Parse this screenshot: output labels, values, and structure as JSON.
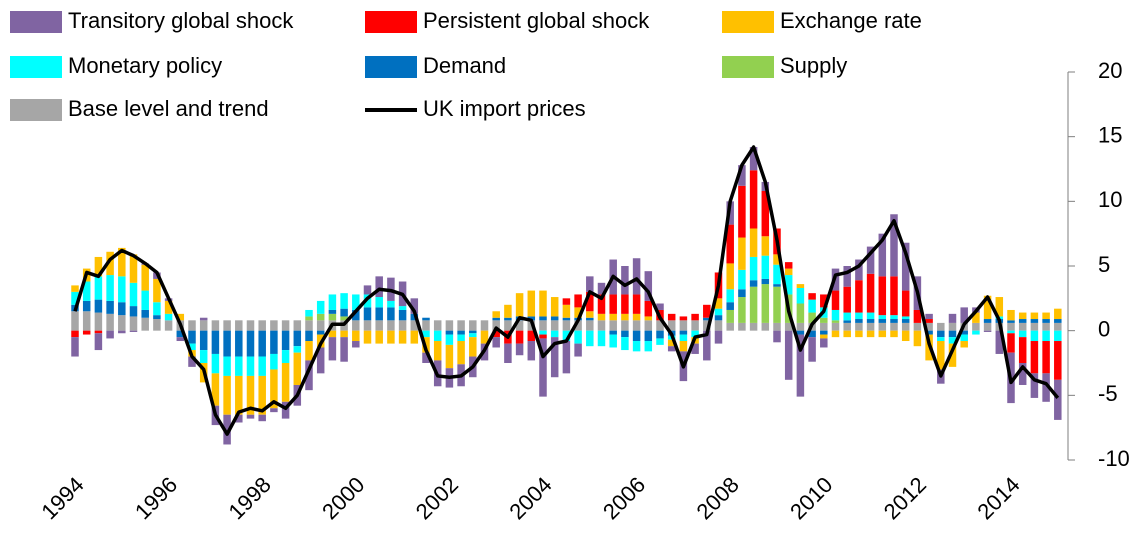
{
  "chart_data": {
    "type": "bar",
    "stacked": true,
    "categories": [
      "1994",
      null,
      null,
      null,
      null,
      null,
      null,
      null,
      "1996",
      null,
      null,
      null,
      null,
      null,
      null,
      null,
      "1998",
      null,
      null,
      null,
      null,
      null,
      null,
      null,
      "2000",
      null,
      null,
      null,
      null,
      null,
      null,
      null,
      "2002",
      null,
      null,
      null,
      null,
      null,
      null,
      null,
      "2004",
      null,
      null,
      null,
      null,
      null,
      null,
      null,
      "2006",
      null,
      null,
      null,
      null,
      null,
      null,
      null,
      "2008",
      null,
      null,
      null,
      null,
      null,
      null,
      null,
      "2010",
      null,
      null,
      null,
      null,
      null,
      null,
      null,
      "2012",
      null,
      null,
      null,
      null,
      null,
      null,
      null,
      "2014",
      null,
      null,
      null,
      null
    ],
    "series": [
      {
        "name": "Transitory global shock",
        "color": "#8064a2",
        "values": [
          -1.5,
          0,
          -1.3,
          -0.6,
          -0.2,
          -0.1,
          0.1,
          0.5,
          0.2,
          -0.3,
          -0.8,
          0.2,
          -1.5,
          -2.3,
          -0.6,
          -0.3,
          -0.5,
          -0.3,
          -1.3,
          -1.6,
          -2.3,
          -2.0,
          -1.8,
          -1.9,
          -0.5,
          0.7,
          1.6,
          1.8,
          1.9,
          1.2,
          -0.8,
          -2.0,
          -1.5,
          -1.7,
          -1.6,
          -1.3,
          -0.8,
          -1.5,
          -0.9,
          -1.5,
          -4.5,
          -3.1,
          -2.5,
          -1.0,
          1.2,
          0.9,
          2.7,
          2.2,
          2.8,
          2.3,
          0.5,
          -0.4,
          -2.3,
          -0.8,
          -2.3,
          -1.0,
          1.8,
          1.6,
          1.8,
          0.7,
          -0.9,
          -3.8,
          -4.8,
          -1.9,
          -0.7,
          1.7,
          1.6,
          1.6,
          2.1,
          3.3,
          4.8,
          3.7,
          2.6,
          0.4,
          -1.1,
          0.7,
          1.2,
          0.4,
          -0.1,
          -1.8,
          -3.9,
          -1.7,
          -1.9,
          -2.2,
          -3.1
        ]
      },
      {
        "name": "Persistent global shock",
        "color": "#ff0000",
        "values": [
          -0.5,
          -0.3,
          -0.2,
          0,
          0,
          0,
          0,
          0,
          0,
          0,
          0,
          0,
          0,
          0,
          0,
          0,
          0,
          0,
          0,
          0,
          0,
          0,
          0,
          0,
          0,
          0,
          0,
          0,
          0,
          0,
          0,
          0,
          0,
          0,
          0,
          0,
          -0.5,
          -1.0,
          -1.0,
          -0.8,
          -0.3,
          0,
          0.5,
          1.0,
          1.5,
          1.5,
          1.5,
          1.5,
          1.5,
          1.2,
          0.8,
          0.5,
          0.3,
          0.5,
          1.0,
          2.0,
          3.0,
          4.0,
          4.5,
          3.5,
          2.0,
          0.5,
          0,
          0.5,
          1.0,
          1.5,
          2.0,
          2.5,
          3.0,
          3.0,
          3.0,
          2.0,
          1.0,
          0.3,
          0,
          0,
          0,
          0,
          0,
          0,
          -1.5,
          -2.0,
          -2.5,
          -2.5,
          -3.0
        ]
      },
      {
        "name": "Exchange rate",
        "color": "#ffc000",
        "values": [
          0.5,
          1.0,
          1.5,
          1.8,
          2.2,
          2.2,
          2.0,
          1.8,
          1.0,
          0.5,
          -0.5,
          -1.5,
          -2.5,
          -3.0,
          -3.0,
          -3.0,
          -3.0,
          -3.0,
          -3.0,
          -2.5,
          -1.5,
          -1.0,
          -0.5,
          -0.5,
          -0.8,
          -1.0,
          -1.0,
          -1.0,
          -1.0,
          -1.0,
          -1.2,
          -1.5,
          -1.8,
          -1.8,
          -1.5,
          -1.0,
          0.5,
          1.0,
          1.8,
          2.0,
          2.0,
          1.5,
          1.0,
          0.8,
          0.5,
          0.5,
          0.5,
          0.5,
          0.5,
          0.3,
          0,
          -0.5,
          -0.8,
          -0.5,
          0,
          0.8,
          2.0,
          2.5,
          2.2,
          1.5,
          0.8,
          0.5,
          0.3,
          0,
          -0.3,
          -0.5,
          -0.5,
          -0.5,
          -0.5,
          -0.5,
          -0.5,
          -0.8,
          -1.2,
          -2.0,
          -2.2,
          -1.8,
          -0.5,
          0.8,
          1.8,
          1.5,
          0.8,
          0.5,
          0.5,
          0.5,
          0.8
        ]
      },
      {
        "name": "Monetary policy",
        "color": "#00ffff",
        "values": [
          1.0,
          1.5,
          1.8,
          2.0,
          2.0,
          1.8,
          1.5,
          1.0,
          0.5,
          0,
          -0.5,
          -1.0,
          -1.5,
          -1.5,
          -1.5,
          -1.5,
          -1.5,
          -1.2,
          -1.0,
          -0.5,
          0.5,
          1.0,
          1.2,
          1.2,
          1.2,
          1.0,
          0.8,
          0.5,
          0.3,
          0,
          -0.5,
          -0.8,
          -0.8,
          -0.5,
          -0.3,
          0,
          0,
          0,
          0,
          0,
          -0.3,
          -0.5,
          -0.8,
          -1.0,
          -1.2,
          -1.2,
          -1.0,
          -1.0,
          -0.8,
          -0.8,
          -0.5,
          -0.3,
          -0.5,
          -0.5,
          0,
          0.5,
          1.0,
          1.5,
          1.8,
          1.8,
          1.5,
          1.5,
          1.2,
          1.0,
          0.8,
          0.8,
          0.6,
          0.5,
          0.5,
          0.3,
          0.3,
          0.2,
          0,
          0,
          -0.3,
          -0.5,
          -0.5,
          -0.3,
          0,
          0.2,
          -0.2,
          -0.5,
          -0.8,
          -0.8,
          -0.8
        ]
      },
      {
        "name": "Demand",
        "color": "#0070c0",
        "values": [
          0.5,
          0.8,
          1.0,
          1.0,
          1.0,
          0.8,
          0.6,
          0.3,
          0,
          -0.5,
          -1.0,
          -1.5,
          -1.8,
          -2.0,
          -2.0,
          -2.0,
          -2.0,
          -1.8,
          -1.5,
          -1.2,
          -0.8,
          -0.3,
          0.3,
          0.6,
          0.8,
          1.0,
          1.0,
          1.0,
          0.8,
          0.5,
          0.2,
          0,
          -0.3,
          -0.3,
          -0.2,
          0,
          0.2,
          0.2,
          0.3,
          0.3,
          0.3,
          0.3,
          0.2,
          0.2,
          0.2,
          0,
          -0.3,
          -0.5,
          -0.8,
          -0.8,
          -0.6,
          -0.4,
          -0.3,
          0,
          0.2,
          0.4,
          0.6,
          0.6,
          0.5,
          0.4,
          0.2,
          0,
          -0.3,
          -0.5,
          -0.3,
          0,
          0.2,
          0.3,
          0.3,
          0.3,
          0.3,
          0.3,
          0,
          -0.3,
          -0.5,
          -0.5,
          -0.3,
          0,
          0.3,
          0.3,
          0.2,
          0.3,
          0.3,
          0.3,
          0.3
        ]
      },
      {
        "name": "Supply",
        "color": "#92d050",
        "values": [
          0,
          0,
          0,
          0,
          0,
          0,
          0,
          0,
          0,
          0,
          0,
          0,
          0,
          0,
          0,
          0,
          0,
          0,
          0,
          0,
          0.3,
          0.5,
          0.5,
          0.3,
          0,
          0,
          0,
          0,
          0,
          0,
          0,
          0,
          0,
          0,
          0,
          0,
          0,
          0,
          0,
          0,
          0,
          0,
          0,
          0,
          0,
          0,
          0,
          0,
          0,
          0,
          0,
          0,
          0,
          0,
          0,
          0,
          1.0,
          2.0,
          2.8,
          3.0,
          2.8,
          2.2,
          1.5,
          0.8,
          0.4,
          0.2,
          0,
          0,
          0,
          0,
          0,
          0,
          0,
          0,
          0,
          0,
          0,
          0,
          0,
          0,
          0,
          0,
          0,
          0,
          0
        ]
      },
      {
        "name": "Base level and trend",
        "color": "#a6a6a6",
        "values": [
          1.5,
          1.5,
          1.4,
          1.3,
          1.2,
          1.1,
          1.0,
          0.9,
          0.8,
          0.8,
          0.8,
          0.8,
          0.8,
          0.8,
          0.8,
          0.8,
          0.8,
          0.8,
          0.8,
          0.8,
          0.8,
          0.8,
          0.8,
          0.8,
          0.8,
          0.8,
          0.8,
          0.8,
          0.8,
          0.8,
          0.8,
          0.8,
          0.8,
          0.8,
          0.8,
          0.8,
          0.8,
          0.8,
          0.8,
          0.8,
          0.8,
          0.8,
          0.8,
          0.8,
          0.8,
          0.8,
          0.8,
          0.8,
          0.8,
          0.8,
          0.8,
          0.8,
          0.8,
          0.8,
          0.8,
          0.8,
          0.6,
          0.6,
          0.6,
          0.6,
          0.6,
          0.6,
          0.6,
          0.6,
          0.6,
          0.6,
          0.6,
          0.6,
          0.6,
          0.6,
          0.6,
          0.6,
          0.6,
          0.6,
          0.6,
          0.6,
          0.6,
          0.6,
          0.6,
          0.6,
          0.6,
          0.6,
          0.6,
          0.6,
          0.6
        ]
      },
      {
        "name": "UK import prices",
        "color": "#000000",
        "type": "line",
        "values": [
          1.5,
          4.5,
          4.2,
          5.5,
          6.2,
          5.8,
          5.2,
          4.5,
          2.5,
          0.5,
          -2,
          -3,
          -6.5,
          -8,
          -6.3,
          -6,
          -6.2,
          -5.5,
          -6,
          -5,
          -3,
          -1,
          0.5,
          0.5,
          1.5,
          2.5,
          3.2,
          3.1,
          2.8,
          1.5,
          -1.5,
          -3.5,
          -3.6,
          -3.5,
          -2.8,
          -1.5,
          0.2,
          -0.5,
          1,
          0.8,
          -2,
          -1,
          -0.8,
          0.8,
          3,
          2.5,
          4.2,
          3.5,
          4,
          3,
          1,
          -0.3,
          -2.8,
          -0.5,
          -0.3,
          3.5,
          10,
          12.8,
          14.2,
          11.5,
          7,
          1.5,
          -1.5,
          0.5,
          1.5,
          4.3,
          4.5,
          5,
          6,
          7,
          8.5,
          6,
          3,
          -1,
          -3.5,
          -1.5,
          0.5,
          1.5,
          2.6,
          0.8,
          -4,
          -2.8,
          -3.8,
          -4.1,
          -5.2
        ]
      }
    ],
    "ylim": [
      -10,
      20
    ],
    "yticks": [
      -10,
      -5,
      0,
      5,
      10,
      15,
      20
    ],
    "yaxis_side": "right",
    "grid": false
  }
}
